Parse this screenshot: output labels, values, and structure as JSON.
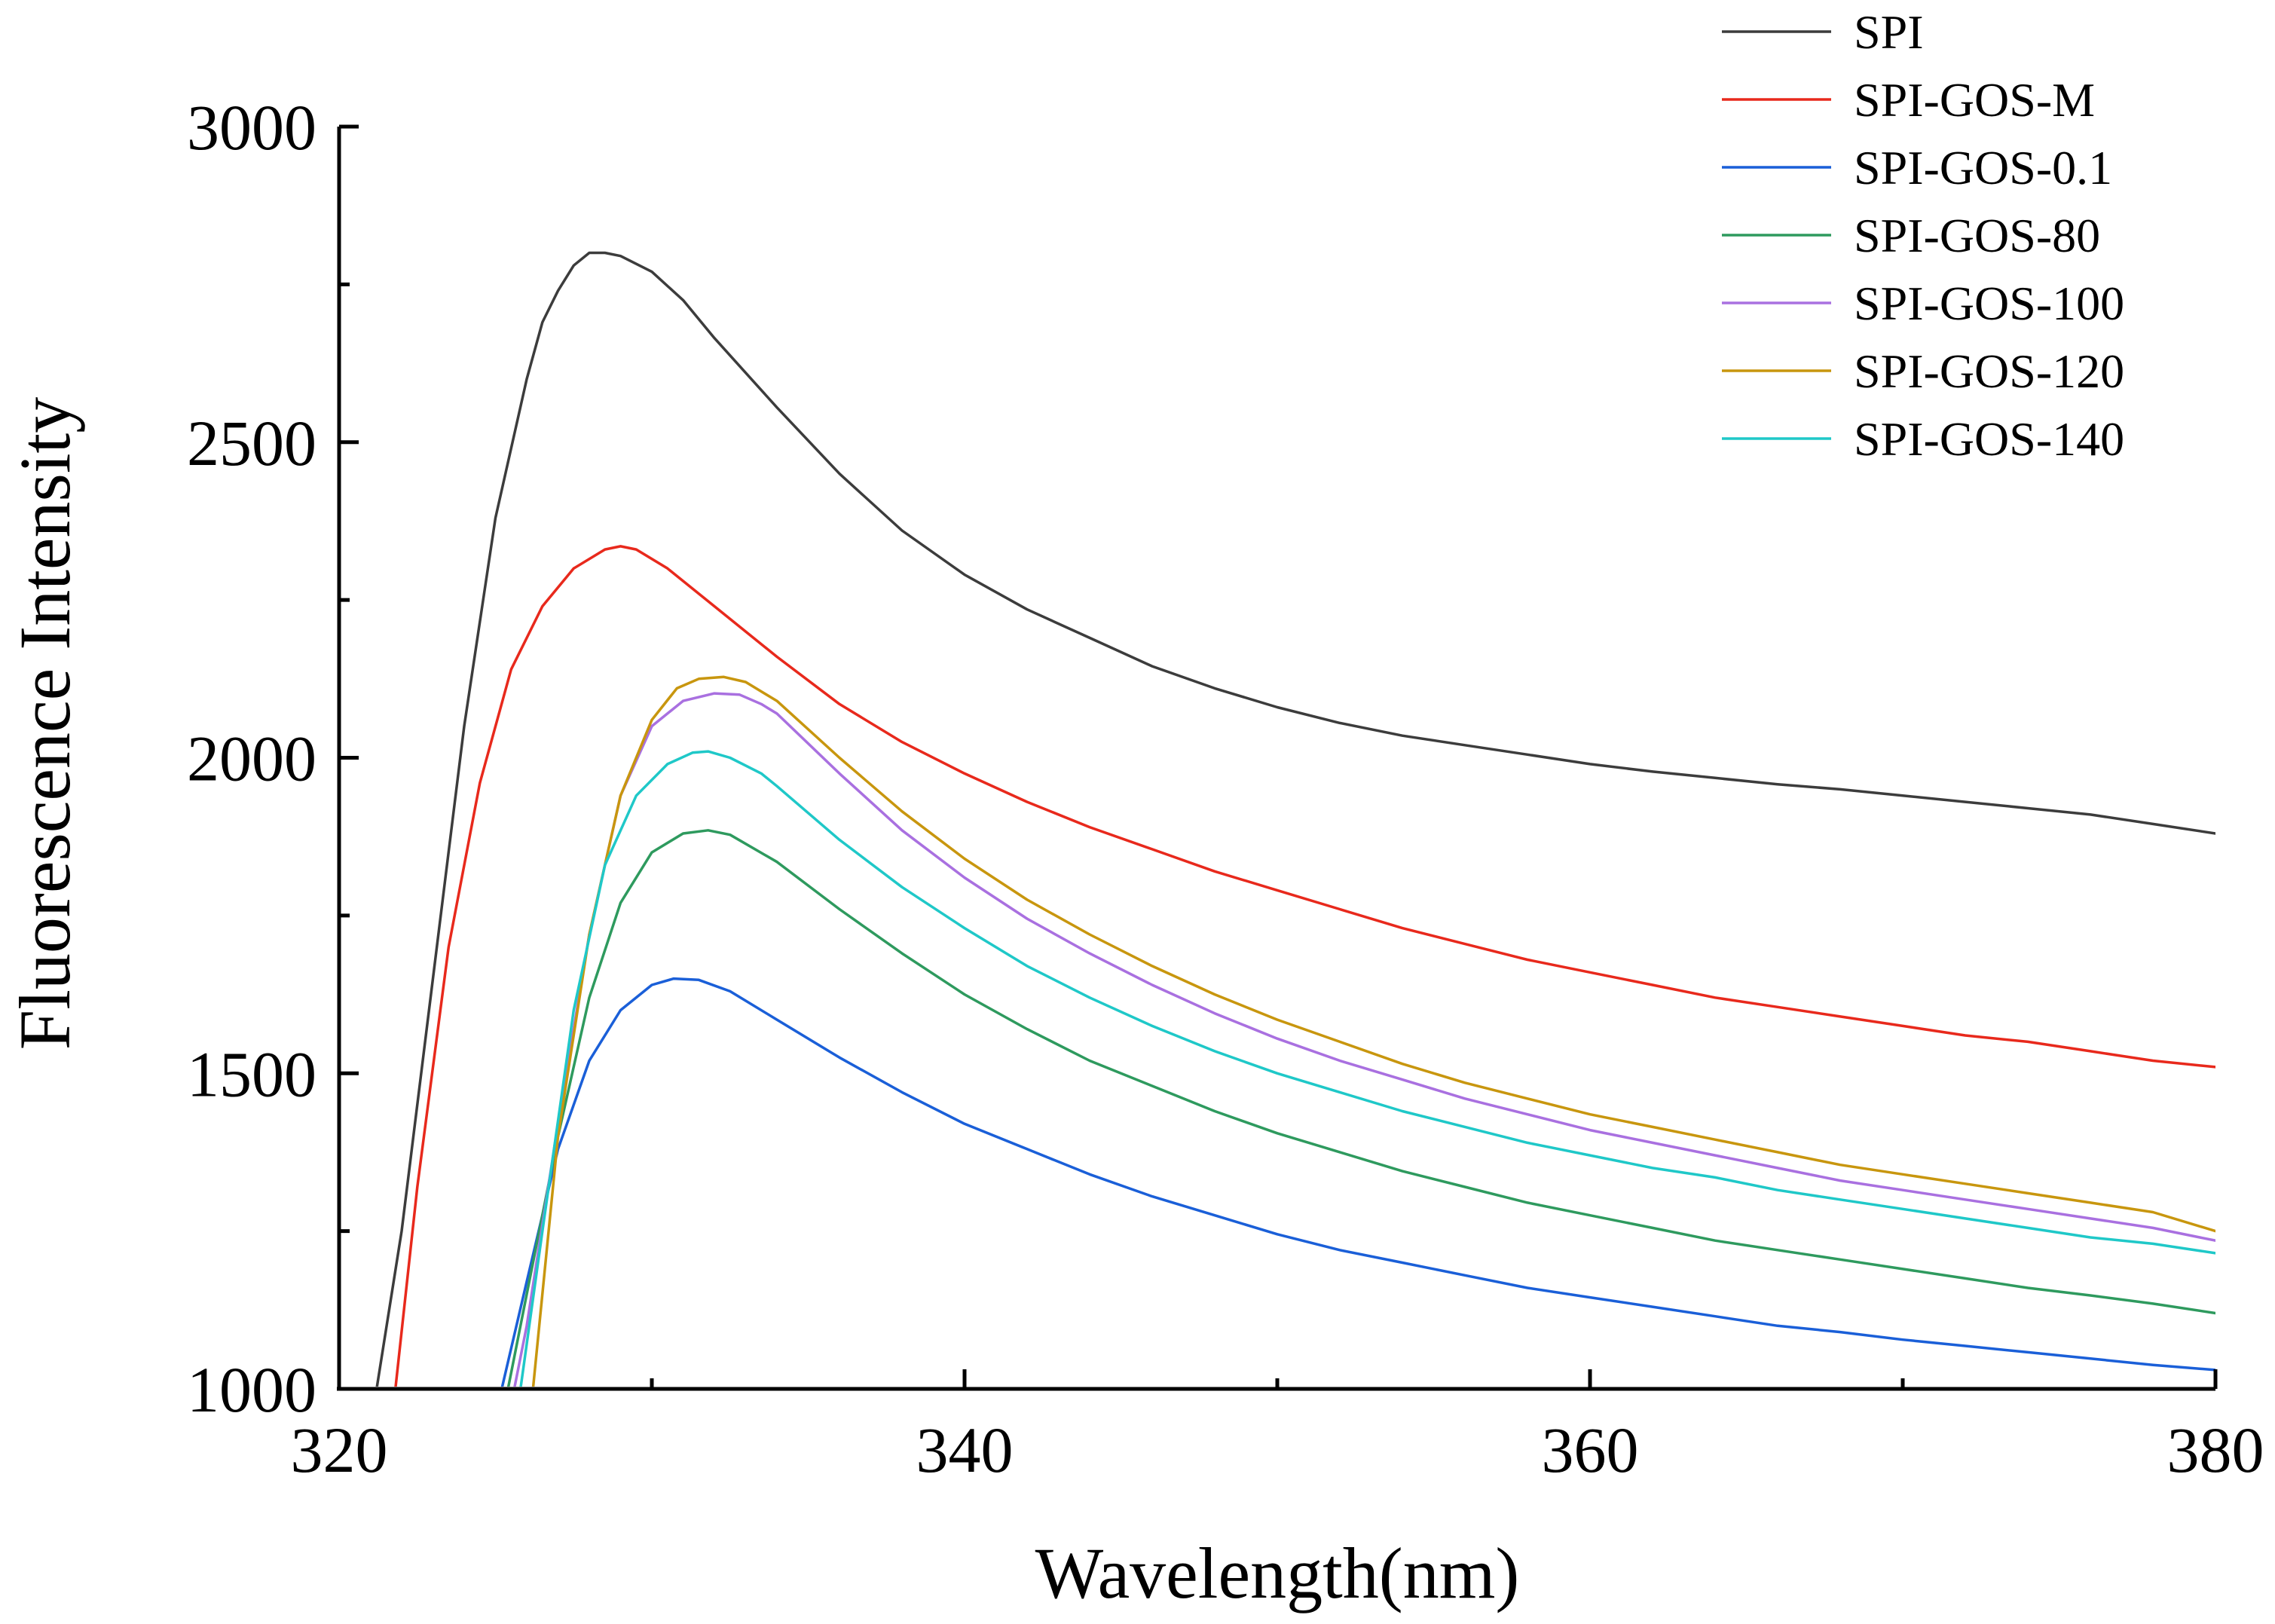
{
  "chart_data": {
    "type": "line",
    "title": "",
    "xlabel": "Wavelength(nm)",
    "ylabel": "Fluorescence  Intensity",
    "xlim": [
      320,
      380
    ],
    "ylim": [
      1000,
      3000
    ],
    "xticks": [
      320,
      340,
      360,
      380
    ],
    "xticks_minor": [
      330,
      350,
      370
    ],
    "yticks": [
      1000,
      1500,
      2000,
      2500,
      3000
    ],
    "yticks_minor": [
      1250,
      1750,
      2250,
      2750
    ],
    "xtick_labels": [
      "320",
      "340",
      "360",
      "380"
    ],
    "ytick_labels": [
      "1000",
      "1500",
      "2000",
      "2500",
      "3000"
    ],
    "legend_position": "top-right",
    "grid": false,
    "series": [
      {
        "name": "SPI",
        "color": "#3c3c3c",
        "x": [
          321.2,
          322,
          323,
          324,
          325,
          326,
          326.5,
          327,
          327.5,
          328,
          328.5,
          329,
          330,
          331,
          332,
          334,
          336,
          338,
          340,
          342,
          344,
          346,
          348,
          350,
          352,
          354,
          356,
          358,
          360,
          362,
          364,
          366,
          368,
          370,
          372,
          374,
          376,
          378,
          380
        ],
        "y": [
          1000,
          1250,
          1650,
          2050,
          2380,
          2600,
          2690,
          2740,
          2780,
          2800,
          2800,
          2795,
          2770,
          2725,
          2665,
          2555,
          2450,
          2360,
          2290,
          2235,
          2190,
          2145,
          2110,
          2080,
          2055,
          2035,
          2020,
          2005,
          1990,
          1978,
          1968,
          1958,
          1950,
          1940,
          1930,
          1920,
          1910,
          1895,
          1880
        ]
      },
      {
        "name": "SPI-GOS-M",
        "color": "#e8291c",
        "x": [
          321.8,
          322.5,
          323.5,
          324.5,
          325.5,
          326.5,
          327.5,
          328.5,
          329,
          329.5,
          330.5,
          332,
          334,
          336,
          338,
          340,
          342,
          344,
          346,
          348,
          350,
          352,
          354,
          356,
          358,
          360,
          362,
          364,
          366,
          368,
          370,
          372,
          374,
          376,
          378,
          380
        ],
        "y": [
          1000,
          1320,
          1700,
          1960,
          2140,
          2240,
          2300,
          2330,
          2335,
          2330,
          2300,
          2240,
          2160,
          2085,
          2025,
          1975,
          1930,
          1890,
          1855,
          1820,
          1790,
          1760,
          1730,
          1705,
          1680,
          1660,
          1640,
          1620,
          1605,
          1590,
          1575,
          1560,
          1550,
          1535,
          1520,
          1510
        ]
      },
      {
        "name": "SPI-GOS-0.1",
        "color": "#1a5fd8",
        "x": [
          325.2,
          326,
          327,
          328,
          329,
          330,
          330.7,
          331.5,
          332.5,
          334,
          336,
          338,
          340,
          342,
          344,
          346,
          348,
          350,
          352,
          354,
          356,
          358,
          360,
          362,
          364,
          366,
          368,
          370,
          372,
          374,
          376,
          378,
          380
        ],
        "y": [
          1000,
          1170,
          1380,
          1520,
          1600,
          1640,
          1650,
          1648,
          1630,
          1585,
          1525,
          1470,
          1420,
          1380,
          1340,
          1305,
          1275,
          1245,
          1220,
          1200,
          1180,
          1160,
          1145,
          1130,
          1115,
          1100,
          1090,
          1078,
          1068,
          1058,
          1048,
          1038,
          1030
        ]
      },
      {
        "name": "SPI-GOS-80",
        "color": "#2e9a5e",
        "x": [
          325.4,
          326,
          327,
          328,
          329,
          330,
          331,
          331.8,
          332.5,
          334,
          336,
          338,
          340,
          342,
          344,
          346,
          348,
          350,
          352,
          354,
          356,
          358,
          360,
          362,
          364,
          366,
          368,
          370,
          372,
          374,
          376,
          378,
          380
        ],
        "y": [
          1000,
          1150,
          1400,
          1620,
          1770,
          1850,
          1880,
          1885,
          1878,
          1835,
          1760,
          1690,
          1625,
          1570,
          1520,
          1480,
          1440,
          1405,
          1375,
          1345,
          1320,
          1295,
          1275,
          1255,
          1235,
          1220,
          1205,
          1190,
          1175,
          1160,
          1148,
          1135,
          1120
        ]
      },
      {
        "name": "SPI-GOS-100",
        "color": "#a970e0",
        "x": [
          325.6,
          326,
          327,
          328,
          329,
          330,
          331,
          332,
          332.8,
          333.5,
          334,
          336,
          338,
          340,
          342,
          344,
          346,
          348,
          350,
          352,
          354,
          356,
          358,
          360,
          362,
          364,
          366,
          368,
          370,
          372,
          374,
          376,
          378,
          380
        ],
        "y": [
          1000,
          1100,
          1420,
          1720,
          1940,
          2050,
          2090,
          2102,
          2100,
          2085,
          2070,
          1975,
          1885,
          1810,
          1745,
          1690,
          1640,
          1595,
          1555,
          1520,
          1490,
          1460,
          1435,
          1410,
          1390,
          1370,
          1350,
          1330,
          1315,
          1300,
          1285,
          1270,
          1255,
          1235
        ]
      },
      {
        "name": "SPI-GOS-120",
        "color": "#c8960e",
        "x": [
          326.2,
          327,
          328,
          329,
          330,
          330.8,
          331.5,
          332.3,
          333,
          333.5,
          334,
          336,
          338,
          340,
          342,
          344,
          346,
          348,
          350,
          352,
          354,
          356,
          358,
          360,
          362,
          364,
          366,
          368,
          370,
          372,
          374,
          376,
          378,
          380
        ],
        "y": [
          1000,
          1400,
          1720,
          1940,
          2060,
          2110,
          2125,
          2128,
          2120,
          2105,
          2090,
          2000,
          1915,
          1840,
          1775,
          1720,
          1670,
          1625,
          1585,
          1550,
          1515,
          1485,
          1460,
          1435,
          1415,
          1395,
          1375,
          1355,
          1340,
          1325,
          1310,
          1295,
          1280,
          1250
        ]
      },
      {
        "name": "SPI-GOS-140",
        "color": "#1fc8c8",
        "x": [
          325.8,
          326.5,
          327.5,
          328.5,
          329.5,
          330.5,
          331.3,
          331.8,
          332.5,
          333.5,
          334,
          336,
          338,
          340,
          342,
          344,
          346,
          348,
          350,
          352,
          354,
          356,
          358,
          360,
          362,
          364,
          366,
          368,
          370,
          372,
          374,
          376,
          378,
          380
        ],
        "y": [
          1000,
          1250,
          1600,
          1830,
          1940,
          1990,
          2008,
          2010,
          2000,
          1975,
          1955,
          1870,
          1795,
          1730,
          1670,
          1620,
          1575,
          1535,
          1500,
          1470,
          1440,
          1415,
          1390,
          1370,
          1350,
          1335,
          1315,
          1300,
          1285,
          1270,
          1255,
          1240,
          1230,
          1215
        ]
      }
    ]
  }
}
